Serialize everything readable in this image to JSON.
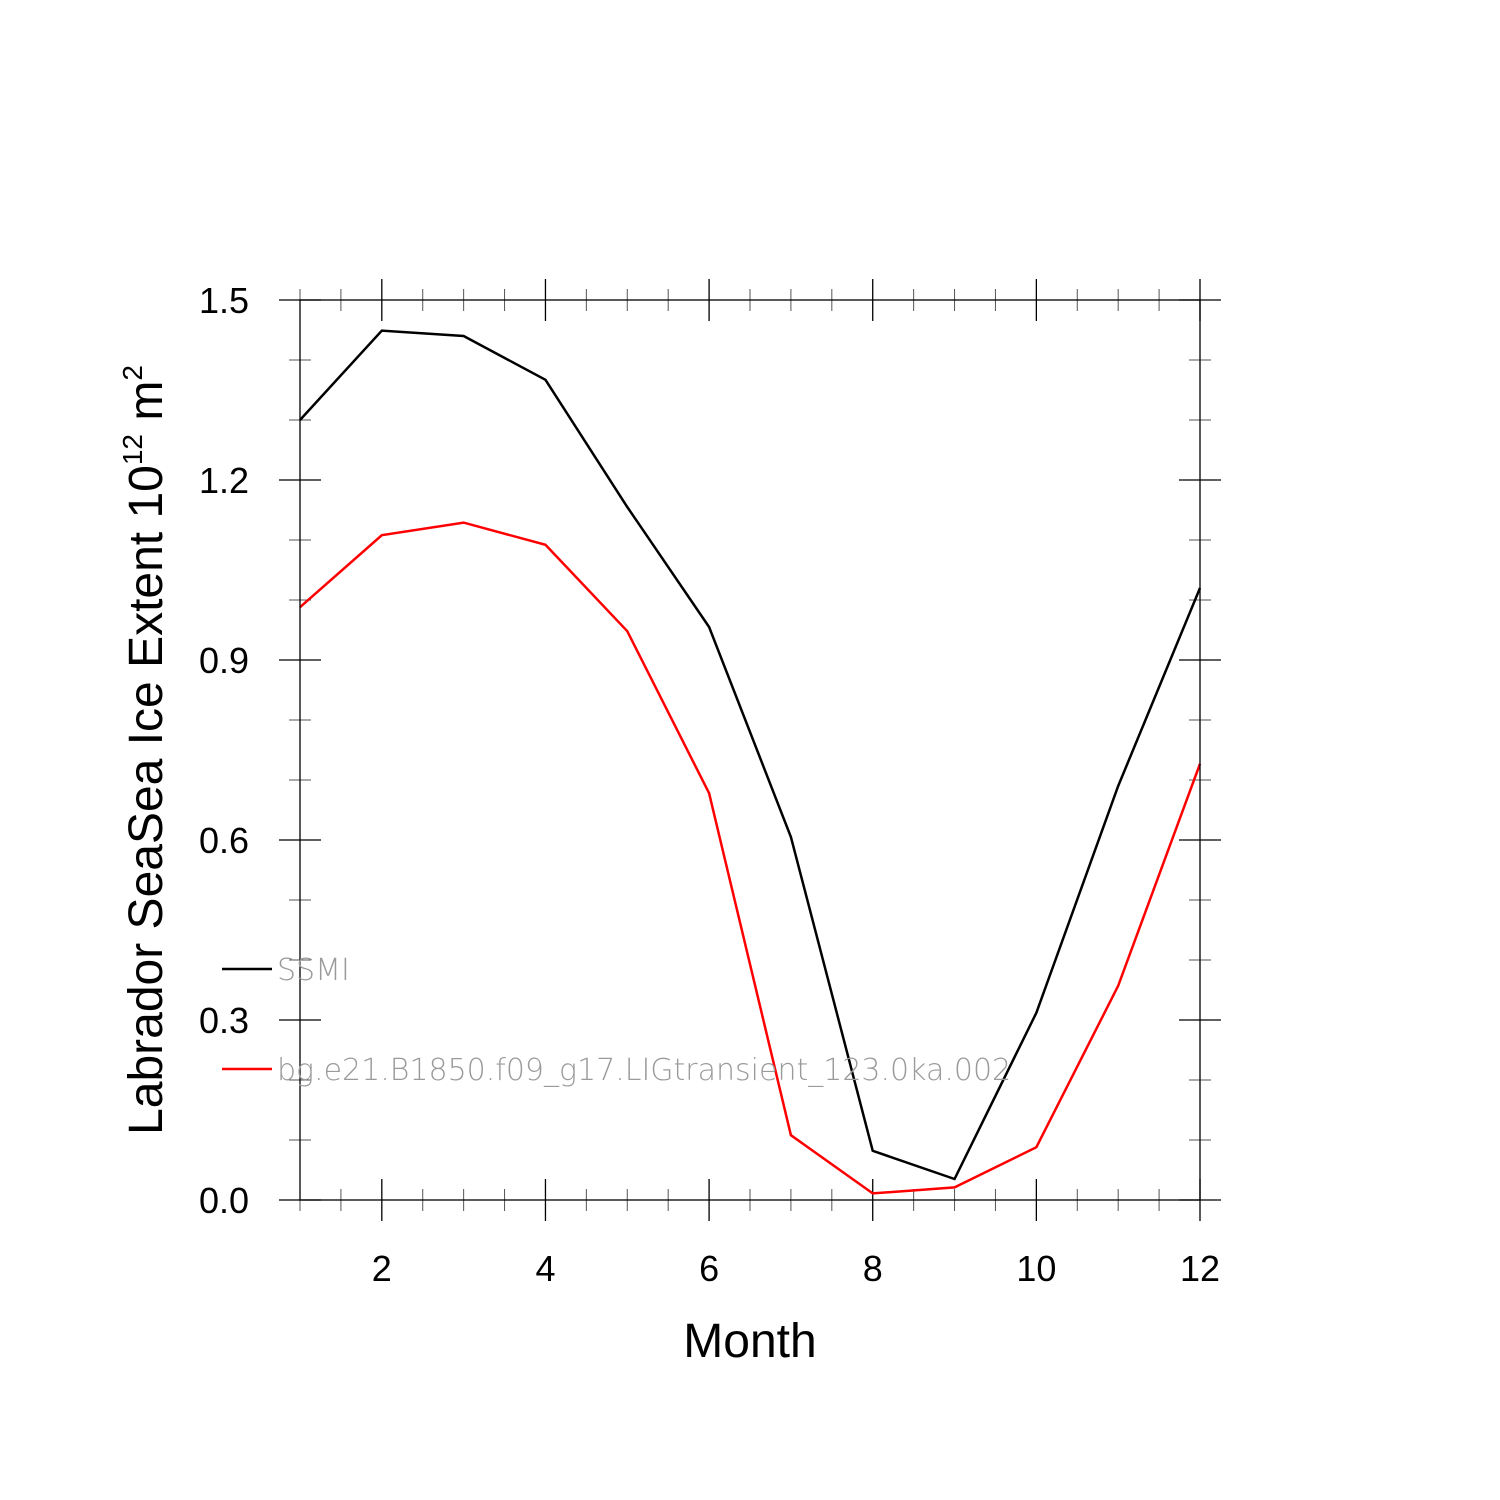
{
  "chart_data": {
    "type": "line",
    "xlabel": "Month",
    "ylabel_main": "Labrador SeaSea Ice Extent 10",
    "ylabel_exp": "12",
    "ylabel_unit": " m",
    "ylabel_unit_exp": "2",
    "xlim": [
      1,
      12
    ],
    "ylim": [
      0,
      1.5
    ],
    "x_ticks": [
      2,
      4,
      6,
      8,
      10,
      12
    ],
    "x_tick_labels": [
      "2",
      "4",
      "6",
      "8",
      "10",
      "12"
    ],
    "y_ticks": [
      0,
      0.3,
      0.6,
      0.9,
      1.2,
      1.5
    ],
    "y_tick_labels": [
      "0.0",
      "0.3",
      "0.6",
      "0.9",
      "1.2",
      "1.5"
    ],
    "x_minor_step": 0.5,
    "y_minor_step": 0.1,
    "grid": false,
    "legend_position": "bottom-left",
    "x": [
      1,
      2,
      3,
      4,
      5,
      6,
      7,
      8,
      9,
      10,
      11,
      12
    ],
    "series": [
      {
        "name": "SSMI",
        "color": "#000000",
        "values": [
          1.3,
          1.449,
          1.44,
          1.367,
          1.155,
          0.955,
          0.605,
          0.082,
          0.035,
          0.312,
          0.69,
          1.02
        ]
      },
      {
        "name": "bg.e21.B1850.f09_g17.LIGtransient_123.0ka.002",
        "color": "#ff0000",
        "values": [
          0.988,
          1.108,
          1.129,
          1.092,
          0.948,
          0.678,
          0.108,
          0.011,
          0.021,
          0.088,
          0.357,
          0.727
        ]
      }
    ]
  }
}
